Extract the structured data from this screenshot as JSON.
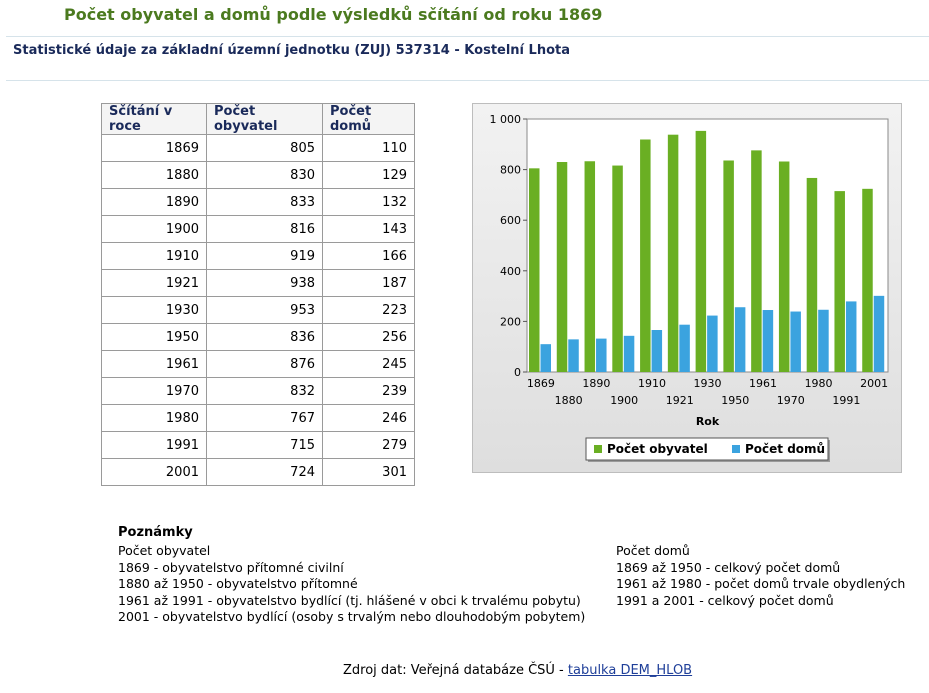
{
  "page_title": "Počet obyvatel a domů podle výsledků sčítání od roku 1869",
  "subtitle": "Statistické údaje za základní územní jednotku (ZUJ) 537314  -  Kostelní Lhota",
  "table": {
    "headers": [
      "Sčítání v roce",
      "Počet obyvatel",
      "Počet domů"
    ],
    "rows": [
      [
        "1869",
        "805",
        "110"
      ],
      [
        "1880",
        "830",
        "129"
      ],
      [
        "1890",
        "833",
        "132"
      ],
      [
        "1900",
        "816",
        "143"
      ],
      [
        "1910",
        "919",
        "166"
      ],
      [
        "1921",
        "938",
        "187"
      ],
      [
        "1930",
        "953",
        "223"
      ],
      [
        "1950",
        "836",
        "256"
      ],
      [
        "1961",
        "876",
        "245"
      ],
      [
        "1970",
        "832",
        "239"
      ],
      [
        "1980",
        "767",
        "246"
      ],
      [
        "1991",
        "715",
        "279"
      ],
      [
        "2001",
        "724",
        "301"
      ]
    ]
  },
  "chart_data": {
    "type": "bar",
    "categories": [
      "1869",
      "1880",
      "1890",
      "1900",
      "1910",
      "1921",
      "1930",
      "1950",
      "1961",
      "1970",
      "1980",
      "1991",
      "2001"
    ],
    "series": [
      {
        "name": "Počet obyvatel",
        "color": "#6aaf23",
        "values": [
          805,
          830,
          833,
          816,
          919,
          938,
          953,
          836,
          876,
          832,
          767,
          715,
          724
        ]
      },
      {
        "name": "Počet domů",
        "color": "#3ba3df",
        "values": [
          110,
          129,
          132,
          143,
          166,
          187,
          223,
          256,
          245,
          239,
          246,
          279,
          301
        ]
      }
    ],
    "xlabel": "Rok",
    "ylabel": "",
    "ylim": [
      0,
      1000
    ],
    "yticks": [
      0,
      200,
      400,
      600,
      800,
      1000
    ],
    "ytick_labels": [
      "0",
      "200",
      "400",
      "600",
      "800",
      "1 000"
    ],
    "legend_position": "bottom",
    "grid": false
  },
  "notes": {
    "heading": "Poznámky",
    "left": [
      "Počet obyvatel",
      "1869 - obyvatelstvo přítomné civilní",
      "1880 až 1950 - obyvatelstvo přítomné",
      "1961 až 1991 - obyvatelstvo bydlící (tj. hlášené v obci k trvalému pobytu)",
      "2001 - obyvatelstvo bydlící (osoby s trvalým nebo dlouhodobým pobytem)"
    ],
    "right": [
      "Počet domů",
      "1869 až 1950 - celkový počet domů",
      "1961 až 1980 - počet domů trvale obydlených",
      "1991 a 2001 - celkový počet domů"
    ]
  },
  "source": {
    "prefix": "Zdroj dat: Veřejná databáze ČSÚ - ",
    "link_label": "tabulka DEM_HLOB"
  }
}
